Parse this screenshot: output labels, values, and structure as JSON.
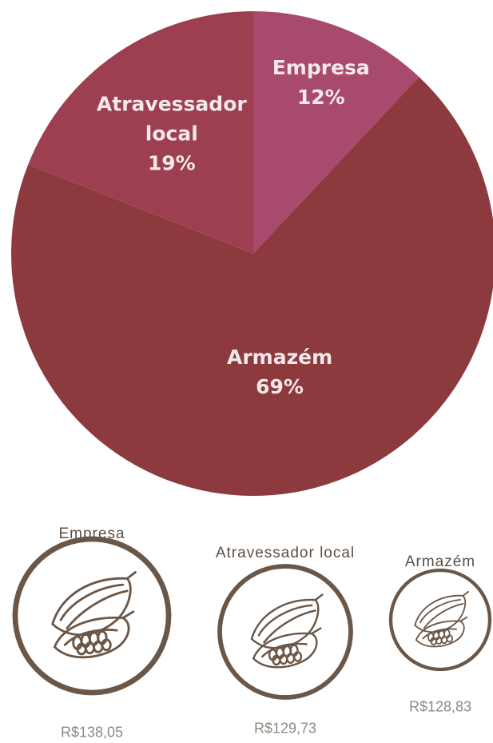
{
  "chart_data": {
    "type": "pie",
    "categories": [
      "Empresa",
      "Armazém",
      "Atravessador local"
    ],
    "values": [
      12,
      69,
      19
    ],
    "value_labels": [
      "12%",
      "69%",
      "19%"
    ],
    "colors": [
      "#a84a6d",
      "#8d3a3f",
      "#9d3f50"
    ]
  },
  "prices": [
    {
      "label": "Empresa",
      "price": "R$138,05"
    },
    {
      "label": "Atravessador local",
      "price": "R$129,73"
    },
    {
      "label": "Armazém",
      "price": "R$128,83"
    }
  ]
}
